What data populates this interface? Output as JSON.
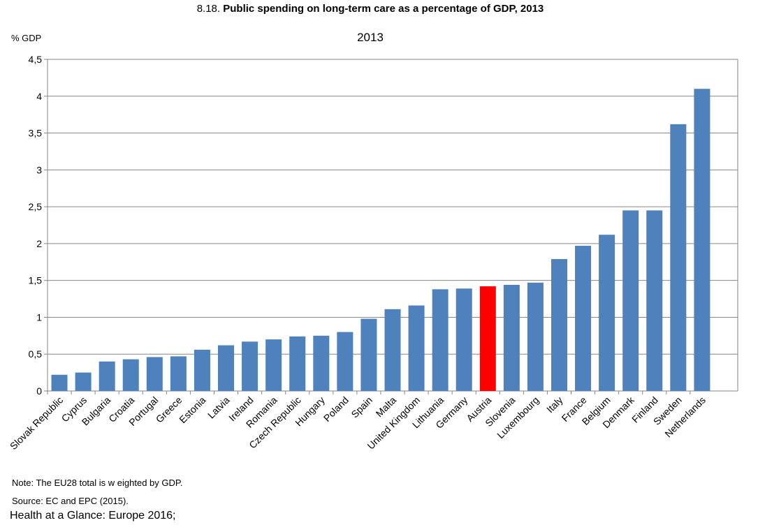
{
  "figure": {
    "number": "8.18.",
    "title": "Public spending on long-term care as a percentage of GDP, 2013",
    "y_unit": "% GDP",
    "subtitle": "2013"
  },
  "notes": {
    "note": "Note: The EU28 total is w eighted by GDP.",
    "source": "Source: EC and EPC (2015).",
    "credit": "Health at a Glance: Europe 2016;"
  },
  "colors": {
    "bar": "#4f81bd",
    "highlight": "#ff0000",
    "grid": "#868686"
  },
  "chart_data": {
    "type": "bar",
    "title": "2013",
    "ylabel": "% GDP",
    "xlabel": "",
    "ylim": [
      0,
      4.5
    ],
    "yticks": [
      "0",
      "0,5",
      "1",
      "1,5",
      "2",
      "2,5",
      "3",
      "3,5",
      "4",
      "4,5"
    ],
    "grid": true,
    "highlight": "Austria",
    "categories": [
      "Slovak Republic",
      "Cyprus",
      "Bulgaria",
      "Croatia",
      "Portugal",
      "Greece",
      "Estonia",
      "Latvia",
      "Ireland",
      "Romania",
      "Czech Republic",
      "Hungary",
      "Poland",
      "Spain",
      "Malta",
      "United Kingdom",
      "Lithuania",
      "Germany",
      "Austria",
      "Slovenia",
      "Luxembourg",
      "Italy",
      "France",
      "Belgium",
      "Denmark",
      "Finland",
      "Sweden",
      "Netherlands"
    ],
    "values": [
      0.22,
      0.25,
      0.4,
      0.43,
      0.46,
      0.47,
      0.56,
      0.62,
      0.67,
      0.7,
      0.74,
      0.75,
      0.8,
      0.98,
      1.11,
      1.16,
      1.38,
      1.39,
      1.42,
      1.44,
      1.47,
      1.79,
      1.97,
      2.12,
      2.45,
      2.45,
      3.62,
      4.1
    ]
  }
}
